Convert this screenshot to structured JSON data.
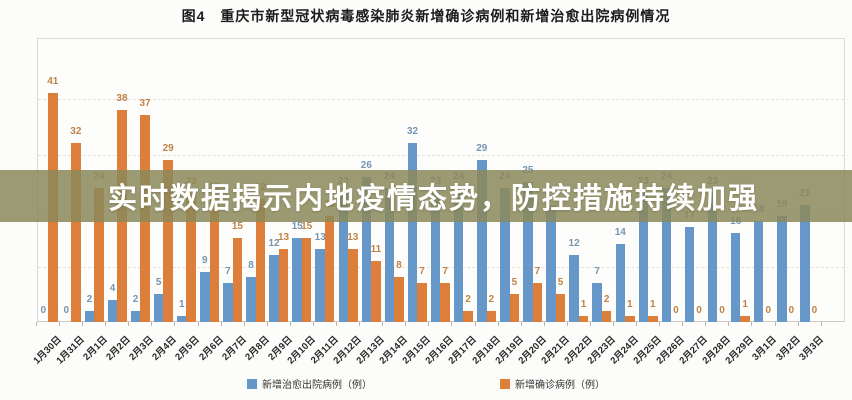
{
  "title": "图4　重庆市新型冠状病毒感染肺炎新增确诊病例和新增治愈出院病例情况",
  "overlay": {
    "text": "实时数据揭示内地疫情态势，防控措施持续加强",
    "background": "#8b885b"
  },
  "legend": [
    {
      "label": "新增治愈出院病例（例）",
      "color": "#6597c8"
    },
    {
      "label": "新增确诊病例（例）",
      "color": "#dd7e3b"
    }
  ],
  "colors": {
    "cured_bar": "#6597c8",
    "confirmed_bar": "#dd7e3b",
    "cured_label": "#7595b0",
    "confirmed_label": "#bf8347",
    "grid": "#ecdcda",
    "axis_text": "#2a2a2a"
  },
  "chart_data": {
    "type": "bar",
    "title": "图4　重庆市新型冠状病毒感染肺炎新增确诊病例和新增治愈出院病例情况",
    "xlabel": "",
    "ylabel": "",
    "ylim": [
      0,
      45
    ],
    "gridlines": [
      10,
      20,
      30,
      40
    ],
    "legend_position": "bottom",
    "categories": [
      "1月30日",
      "1月31日",
      "2月1日",
      "2月2日",
      "2月3日",
      "2月4日",
      "2月5日",
      "2月6日",
      "2月7日",
      "2月8日",
      "2月9日",
      "2月10日",
      "2月11日",
      "2月12日",
      "2月13日",
      "2月14日",
      "2月15日",
      "2月16日",
      "2月17日",
      "2月18日",
      "2月19日",
      "2月20日",
      "2月21日",
      "2月22日",
      "2月23日",
      "2月24日",
      "2月25日",
      "2月26日",
      "2月27日",
      "2月28日",
      "2月29日",
      "3月1日",
      "3月2日",
      "3月3日"
    ],
    "series": [
      {
        "name": "新增治愈出院病例（例）",
        "color": "#6597c8",
        "values": [
          0,
          0,
          2,
          4,
          2,
          5,
          1,
          9,
          7,
          8,
          12,
          15,
          13,
          23,
          26,
          24,
          32,
          23,
          24,
          29,
          24,
          25,
          21,
          12,
          7,
          14,
          23,
          24,
          17,
          23,
          16,
          18,
          19,
          21
        ]
      },
      {
        "name": "新增确诊病例（例）",
        "color": "#dd7e3b",
        "values": [
          41,
          32,
          24,
          38,
          37,
          29,
          23,
          22,
          15,
          22,
          13,
          15,
          19,
          13,
          11,
          8,
          7,
          7,
          2,
          2,
          5,
          7,
          5,
          1,
          2,
          1,
          1,
          0,
          0,
          0,
          1,
          0,
          0,
          0
        ]
      }
    ]
  }
}
